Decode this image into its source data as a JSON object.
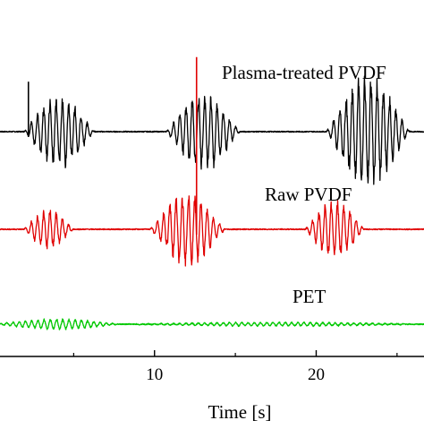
{
  "chart_data": {
    "type": "line",
    "xlabel": "Time [s]",
    "ylabel": "",
    "xlim": [
      0,
      27
    ],
    "x_ticks": [
      "10",
      "20"
    ],
    "grid": false,
    "legend": "none",
    "series": [
      {
        "name": "Plasma-treated PVDF",
        "color": "#000000",
        "bursts": [
          {
            "start": 1.9,
            "end": 6.3,
            "amplitude": 0.55
          },
          {
            "start": 10.7,
            "end": 15.3,
            "amplitude": 0.6
          },
          {
            "start": 20.6,
            "end": 25.8,
            "amplitude": 0.85
          }
        ],
        "spikes": [
          {
            "x": 2.2,
            "value": 0.9
          }
        ]
      },
      {
        "name": "Raw PVDF",
        "color": "#e00000",
        "bursts": [
          {
            "start": 1.9,
            "end": 5.0,
            "amplitude": 0.3
          },
          {
            "start": 9.7,
            "end": 14.4,
            "amplitude": 0.55
          },
          {
            "start": 19.3,
            "end": 23.0,
            "amplitude": 0.45
          }
        ],
        "spikes": [
          {
            "x": 12.6,
            "value": 3.1
          }
        ]
      },
      {
        "name": "PET",
        "color": "#00c800",
        "bursts": [
          {
            "start": 0.0,
            "end": 8.0,
            "amplitude": 0.08
          },
          {
            "start": 8.0,
            "end": 27.0,
            "amplitude": 0.03
          }
        ],
        "spikes": []
      }
    ]
  }
}
